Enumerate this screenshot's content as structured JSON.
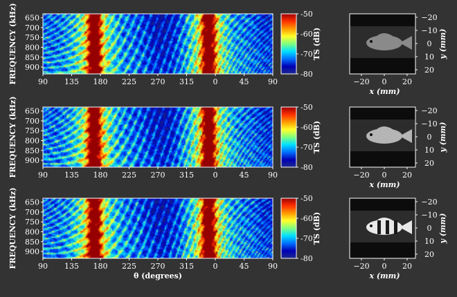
{
  "chart_data": {
    "type": "heatmap",
    "x_label": "θ (degrees)",
    "x_ticks": [
      "90",
      "135",
      "180",
      "225",
      "270",
      "315",
      "0",
      "45",
      "90"
    ],
    "y_label": "FREQUENCY (kHz)",
    "y_ticks": [
      "650",
      "700",
      "750",
      "800",
      "850",
      "900"
    ],
    "ylim": [
      630,
      935
    ],
    "colorbar": {
      "label": "TS (dB)",
      "range": [
        -80,
        -50
      ],
      "ticks": [
        "-50",
        "-60",
        "-70",
        "-80"
      ],
      "colors": [
        "#9e0000",
        "#ff3000",
        "#ff9a00",
        "#ffff2a",
        "#7fff7f",
        "#00e0ff",
        "#0070ff",
        "#0000b4",
        "#1e2a8c"
      ]
    },
    "panels": [
      {
        "peak_angles_deg": [
          170,
          350
        ],
        "max_ts_db": -50,
        "fish": "dark"
      },
      {
        "peak_angles_deg": [
          170,
          350
        ],
        "max_ts_db": -50,
        "fish": "pale"
      },
      {
        "peak_angles_deg": [
          170,
          350
        ],
        "max_ts_db": -50,
        "fish": "banded"
      }
    ],
    "image_axes": {
      "x_label": "x (mm)",
      "y_label": "y (mm)",
      "x_ticks": [
        "−20",
        "0",
        "20"
      ],
      "y_ticks": [
        "−20",
        "−10",
        "0",
        "10",
        "20"
      ]
    }
  }
}
